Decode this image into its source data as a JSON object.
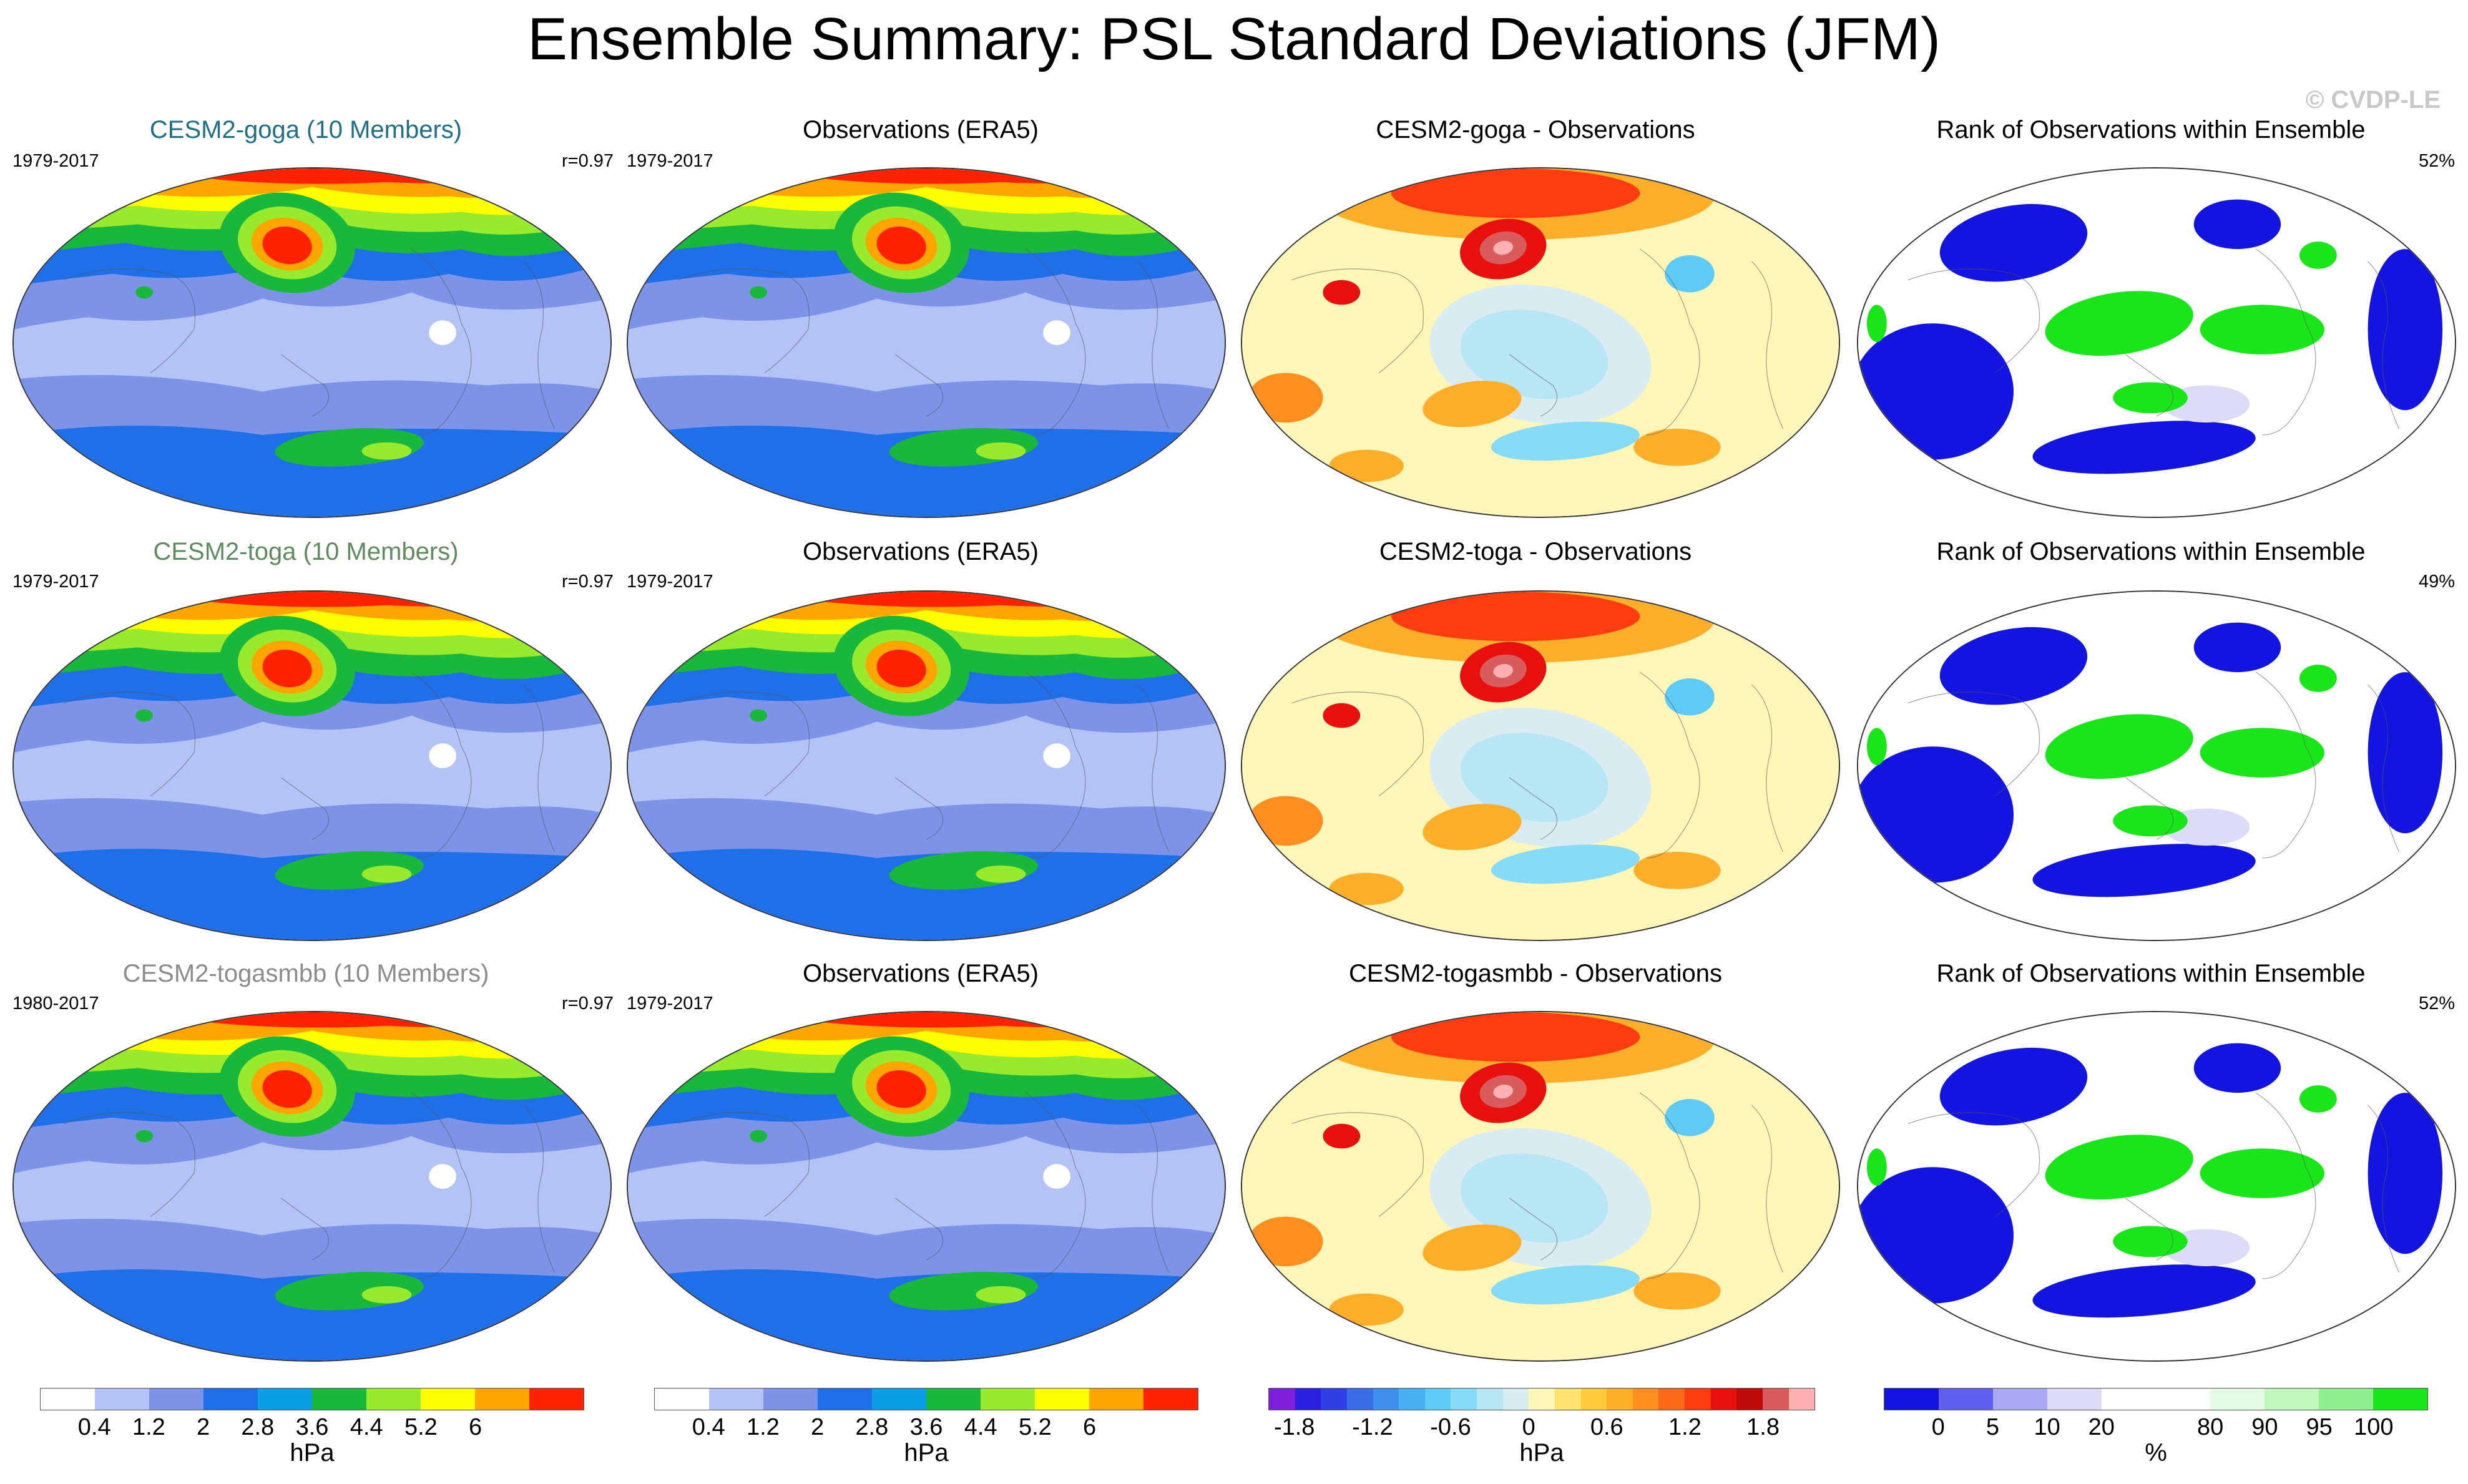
{
  "title": "Ensemble Summary: PSL Standard Deviations (JFM)",
  "credit": "© CVDP-LE",
  "rows": [
    {
      "model": {
        "title": "CESM2-goga (10 Members)",
        "title_color": "#1f6f86",
        "years": "1979-2017",
        "r": "r=0.97"
      },
      "obs": {
        "title": "Observations (ERA5)",
        "years": "1979-2017"
      },
      "diff": {
        "title": "CESM2-goga - Observations"
      },
      "rank": {
        "title": "Rank of Observations within Ensemble",
        "pct": "52%"
      }
    },
    {
      "model": {
        "title": "CESM2-toga (10 Members)",
        "title_color": "#5f8b5f",
        "years": "1979-2017",
        "r": "r=0.97"
      },
      "obs": {
        "title": "Observations (ERA5)",
        "years": "1979-2017"
      },
      "diff": {
        "title": "CESM2-toga - Observations"
      },
      "rank": {
        "title": "Rank of Observations within Ensemble",
        "pct": "49%"
      }
    },
    {
      "model": {
        "title": "CESM2-togasmbb (10 Members)",
        "title_color": "#8c8c8c",
        "years": "1980-2017",
        "r": "r=0.97"
      },
      "obs": {
        "title": "Observations (ERA5)",
        "years": "1979-2017"
      },
      "diff": {
        "title": "CESM2-togasmbb - Observations"
      },
      "rank": {
        "title": "Rank of Observations within Ensemble",
        "pct": "52%"
      }
    }
  ],
  "colorbars": {
    "std": {
      "colors": [
        "#ffffff",
        "#b4c3f5",
        "#7c93e8",
        "#1f6fe8",
        "#0a9ee6",
        "#19b83c",
        "#97ea2c",
        "#ffff00",
        "#ffa500",
        "#ff2200"
      ],
      "ticks": [
        "0.4",
        "1.2",
        "2",
        "2.8",
        "3.6",
        "4.4",
        "5.2",
        "6"
      ],
      "unit": "hPa"
    },
    "diff": {
      "colors": [
        "#7d1fd8",
        "#2b1fe0",
        "#2f3fe6",
        "#3b6ce8",
        "#3f8fee",
        "#48b0f2",
        "#5ecbf6",
        "#86dbf6",
        "#b8e6f4",
        "#d9ecf2",
        "#fff6b8",
        "#ffe36e",
        "#ffcb3a",
        "#ffae2a",
        "#ff8e20",
        "#ff6a18",
        "#ff3c10",
        "#e8100c",
        "#c00a0a",
        "#d85c5c",
        "#ffb0b0"
      ],
      "ticks": [
        "-1.8",
        "-1.2",
        "-0.6",
        "0",
        "0.6",
        "1.2",
        "1.8"
      ],
      "unit": "hPa"
    },
    "rank": {
      "colors": [
        "#1414e0",
        "#6060f0",
        "#a8a8f4",
        "#dcdcf8",
        "#ffffff",
        "#ffffff",
        "#e4fbe4",
        "#bff7bf",
        "#8ff08f",
        "#19e619"
      ],
      "ticks": [
        "0",
        "5",
        "10",
        "20",
        "80",
        "90",
        "95",
        "100"
      ],
      "unit": "%"
    }
  }
}
